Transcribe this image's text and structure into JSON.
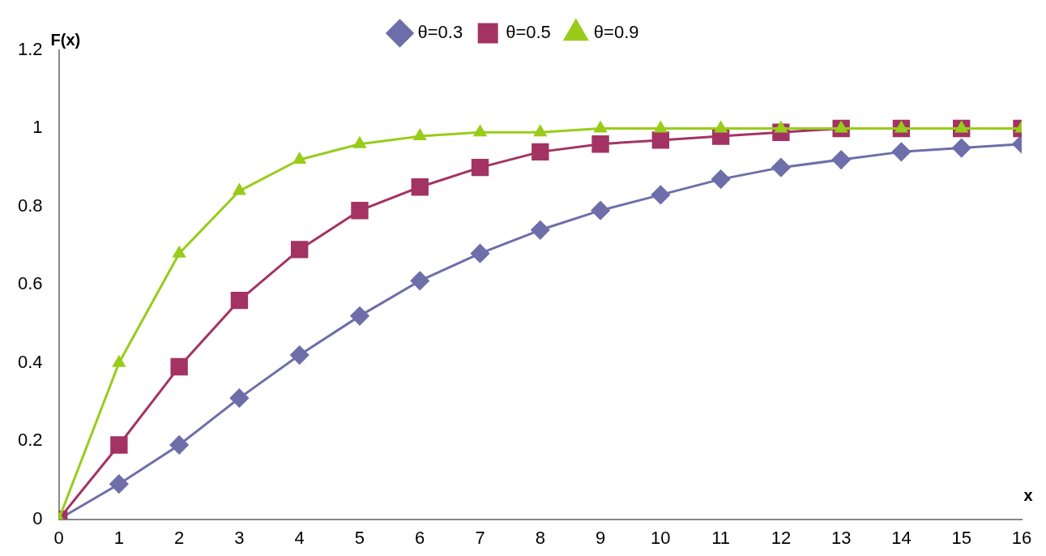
{
  "chart_data": {
    "type": "line",
    "xlabel": "x",
    "ylabel": "F(x)",
    "x": [
      0,
      1,
      2,
      3,
      4,
      5,
      6,
      7,
      8,
      9,
      10,
      11,
      12,
      13,
      14,
      15,
      16
    ],
    "xlim": [
      0,
      16
    ],
    "xticks": [
      0,
      1,
      2,
      3,
      4,
      5,
      6,
      7,
      8,
      9,
      10,
      11,
      12,
      13,
      14,
      15,
      16
    ],
    "ylim": [
      0,
      1.2
    ],
    "yticks": [
      0,
      0.2,
      0.4,
      0.6,
      0.8,
      1,
      1.2
    ],
    "grid": false,
    "legend": "top",
    "line_style": "solid",
    "series": [
      {
        "name": "θ=0.3",
        "color": "#6e6eaa",
        "marker": "diamond",
        "values": [
          0,
          0.09,
          0.19,
          0.31,
          0.42,
          0.52,
          0.61,
          0.68,
          0.74,
          0.79,
          0.83,
          0.87,
          0.9,
          0.92,
          0.94,
          0.95,
          0.96
        ]
      },
      {
        "name": "θ=0.5",
        "color": "#a33363",
        "marker": "square",
        "values": [
          0,
          0.19,
          0.39,
          0.56,
          0.69,
          0.79,
          0.85,
          0.9,
          0.94,
          0.96,
          0.97,
          0.98,
          0.99,
          1,
          1,
          1,
          1
        ]
      },
      {
        "name": "θ=0.9",
        "color": "#99cc1a",
        "marker": "triangle",
        "values": [
          0,
          0.4,
          0.68,
          0.84,
          0.92,
          0.96,
          0.98,
          0.99,
          0.99,
          1,
          1,
          1,
          1,
          1,
          1,
          1,
          1
        ]
      }
    ]
  }
}
